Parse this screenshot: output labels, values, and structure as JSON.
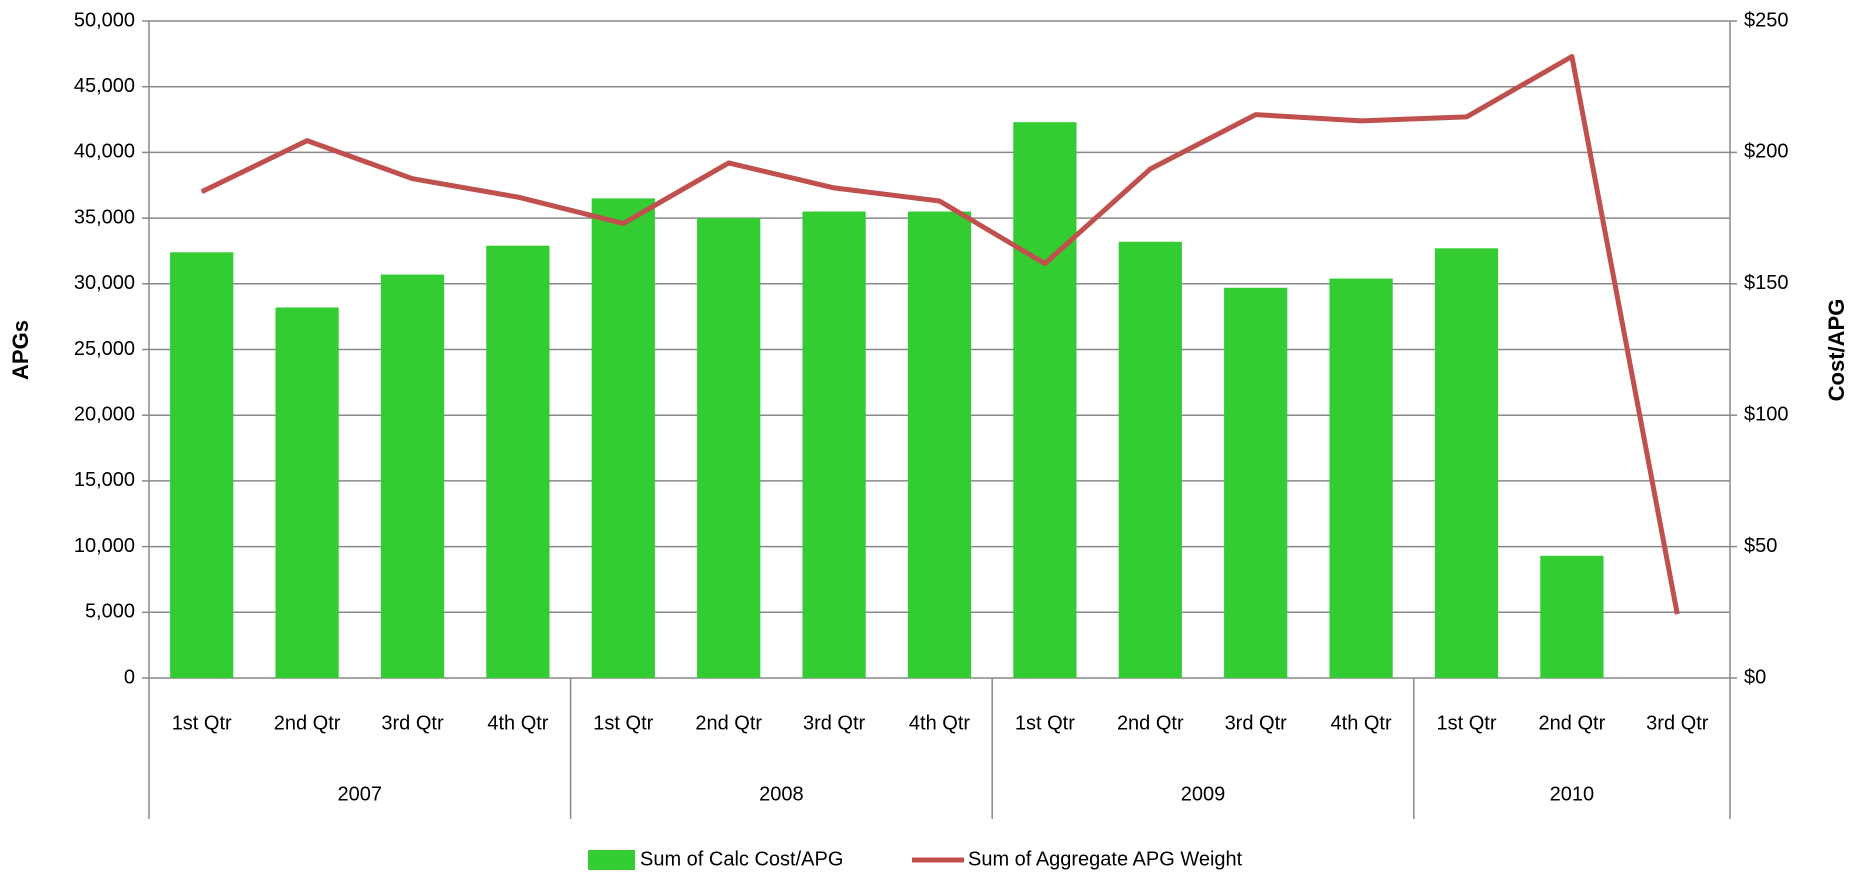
{
  "chart_data": {
    "type": "combo",
    "y_label": "APGs",
    "y2_label": "Cost/APG",
    "groups": [
      {
        "label": "2007",
        "categories": [
          "1st Qtr",
          "2nd Qtr",
          "3rd Qtr",
          "4th Qtr"
        ]
      },
      {
        "label": "2008",
        "categories": [
          "1st Qtr",
          "2nd Qtr",
          "3rd Qtr",
          "4th Qtr"
        ]
      },
      {
        "label": "2009",
        "categories": [
          "1st Qtr",
          "2nd Qtr",
          "3rd Qtr",
          "4th Qtr"
        ]
      },
      {
        "label": "2010",
        "categories": [
          "1st Qtr",
          "2nd Qtr",
          "3rd Qtr"
        ]
      }
    ],
    "series": [
      {
        "name": "Sum of Calc Cost/APG",
        "type": "bar",
        "axis": "y",
        "color": "#33cc33",
        "values": [
          32400,
          28200,
          30700,
          32900,
          36500,
          35000,
          35500,
          35500,
          42300,
          33200,
          29700,
          30400,
          32700,
          9300,
          null
        ]
      },
      {
        "name": "Sum of Aggregate APG Weight",
        "type": "line",
        "axis": "y2",
        "color": "#c0504d",
        "values": [
          185,
          204.5,
          190,
          183,
          173,
          196,
          186.5,
          181.5,
          157.7,
          193.7,
          214.4,
          212,
          213.5,
          236.5,
          24.3
        ]
      }
    ],
    "ylim": [
      0,
      50000
    ],
    "yticks": [
      0,
      {
        "value": 5000,
        "label": "5,000"
      },
      {
        "value": 10000,
        "label": "10,000"
      },
      {
        "value": 15000,
        "label": "15,000"
      },
      {
        "value": 20000,
        "label": "20,000"
      },
      {
        "value": 25000,
        "label": "25,000"
      },
      {
        "value": 30000,
        "label": "30,000"
      },
      {
        "value": 35000,
        "label": "35,000"
      },
      {
        "value": 40000,
        "label": "40,000"
      },
      {
        "value": 45000,
        "label": "45,000"
      },
      {
        "value": 50000,
        "label": "50,000"
      }
    ],
    "y2lim": [
      0,
      250
    ],
    "y2ticks": [
      {
        "value": 0,
        "label": "$0"
      },
      {
        "value": 50,
        "label": "$50"
      },
      {
        "value": 100,
        "label": "$100"
      },
      {
        "value": 150,
        "label": "$150"
      },
      {
        "value": 200,
        "label": "$200"
      },
      {
        "value": 250,
        "label": "$250"
      }
    ],
    "grid": true,
    "legend": "bottom"
  }
}
